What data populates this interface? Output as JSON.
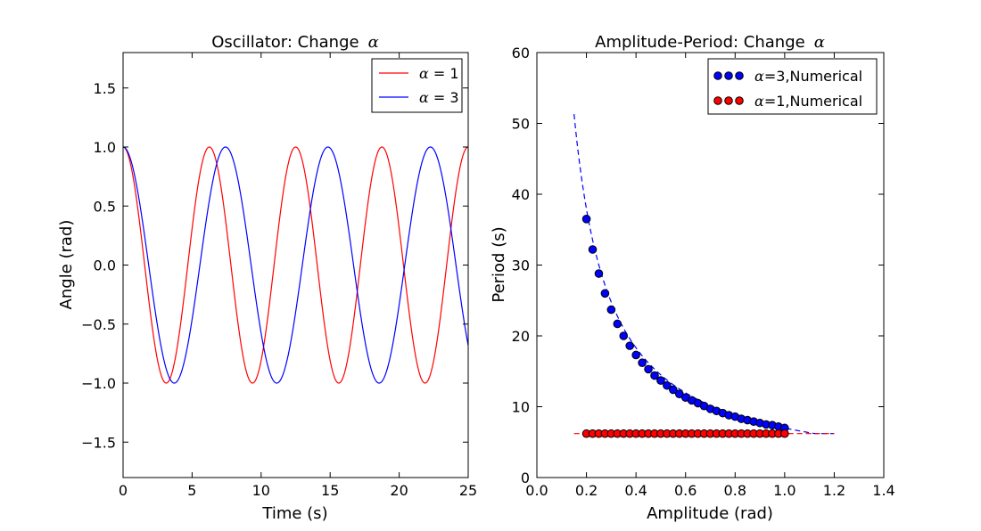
{
  "chart_data": [
    {
      "type": "line",
      "title": "Oscillator: Change",
      "title_symbol": "α",
      "xlabel": "Time (s)",
      "ylabel": "Angle (rad)",
      "xlim": [
        0,
        25
      ],
      "ylim": [
        -1.8,
        1.8
      ],
      "xticks": [
        0,
        5,
        10,
        15,
        20,
        25
      ],
      "xtick_labels": [
        "0",
        "5",
        "10",
        "15",
        "20",
        "25"
      ],
      "yticks": [
        -1.5,
        -1.0,
        -0.5,
        0.0,
        0.5,
        1.0,
        1.5
      ],
      "ytick_labels": [
        "−1.5",
        "−1.0",
        "−0.5",
        "0.0",
        "0.5",
        "1.0",
        "1.5"
      ],
      "legend_position": "top-right",
      "series": [
        {
          "name": "α = 1",
          "legend_symbol": "α",
          "legend_rest": " = 1",
          "color": "#ff0000",
          "period": 6.25,
          "amplitude": 1.0
        },
        {
          "name": "α = 3",
          "legend_symbol": "α",
          "legend_rest": " = 3",
          "color": "#0000ff",
          "period": 7.42,
          "amplitude": 1.0
        }
      ]
    },
    {
      "type": "scatter",
      "title": "Amplitude-Period: Change",
      "title_symbol": "α",
      "xlabel": "Amplitude (rad)",
      "ylabel": "Period (s)",
      "xlim": [
        0.0,
        1.4
      ],
      "ylim": [
        0,
        60
      ],
      "xticks": [
        0.0,
        0.2,
        0.4,
        0.6,
        0.8,
        1.0,
        1.2,
        1.4
      ],
      "xtick_labels": [
        "0.0",
        "0.2",
        "0.4",
        "0.6",
        "0.8",
        "1.0",
        "1.2",
        "1.4"
      ],
      "yticks": [
        0,
        10,
        20,
        30,
        40,
        50,
        60
      ],
      "ytick_labels": [
        "0",
        "10",
        "20",
        "30",
        "40",
        "50",
        "60"
      ],
      "legend_position": "top-right",
      "series": [
        {
          "name": "α=3,Numerical",
          "legend_symbol": "α",
          "legend_rest": "=3,Numerical",
          "color": "#0000ff",
          "x": [
            0.2,
            0.225,
            0.25,
            0.275,
            0.3,
            0.325,
            0.35,
            0.375,
            0.4,
            0.425,
            0.45,
            0.475,
            0.5,
            0.525,
            0.55,
            0.575,
            0.6,
            0.625,
            0.65,
            0.675,
            0.7,
            0.725,
            0.75,
            0.775,
            0.8,
            0.825,
            0.85,
            0.875,
            0.9,
            0.925,
            0.95,
            0.975,
            1.0
          ],
          "y": [
            36.5,
            32.2,
            28.8,
            26.0,
            23.7,
            21.7,
            20.0,
            18.6,
            17.3,
            16.2,
            15.3,
            14.4,
            13.7,
            13.0,
            12.4,
            11.8,
            11.3,
            10.9,
            10.5,
            10.1,
            9.7,
            9.4,
            9.1,
            8.8,
            8.6,
            8.3,
            8.1,
            7.9,
            7.7,
            7.5,
            7.4,
            7.2,
            7.0
          ],
          "fit_curve": "dashed"
        },
        {
          "name": "α=1,Numerical",
          "legend_symbol": "α",
          "legend_rest": "=1,Numerical",
          "color": "#ff0000",
          "x": [
            0.2,
            0.225,
            0.25,
            0.275,
            0.3,
            0.325,
            0.35,
            0.375,
            0.4,
            0.425,
            0.45,
            0.475,
            0.5,
            0.525,
            0.55,
            0.575,
            0.6,
            0.625,
            0.65,
            0.675,
            0.7,
            0.725,
            0.75,
            0.775,
            0.8,
            0.825,
            0.85,
            0.875,
            0.9,
            0.925,
            0.95,
            0.975,
            1.0
          ],
          "y": [
            6.2,
            6.2,
            6.2,
            6.2,
            6.2,
            6.2,
            6.2,
            6.2,
            6.2,
            6.2,
            6.2,
            6.2,
            6.2,
            6.2,
            6.2,
            6.2,
            6.2,
            6.2,
            6.2,
            6.2,
            6.2,
            6.2,
            6.2,
            6.2,
            6.2,
            6.2,
            6.2,
            6.2,
            6.2,
            6.2,
            6.2,
            6.2,
            6.2
          ],
          "fit_curve": "dashed"
        }
      ]
    }
  ]
}
